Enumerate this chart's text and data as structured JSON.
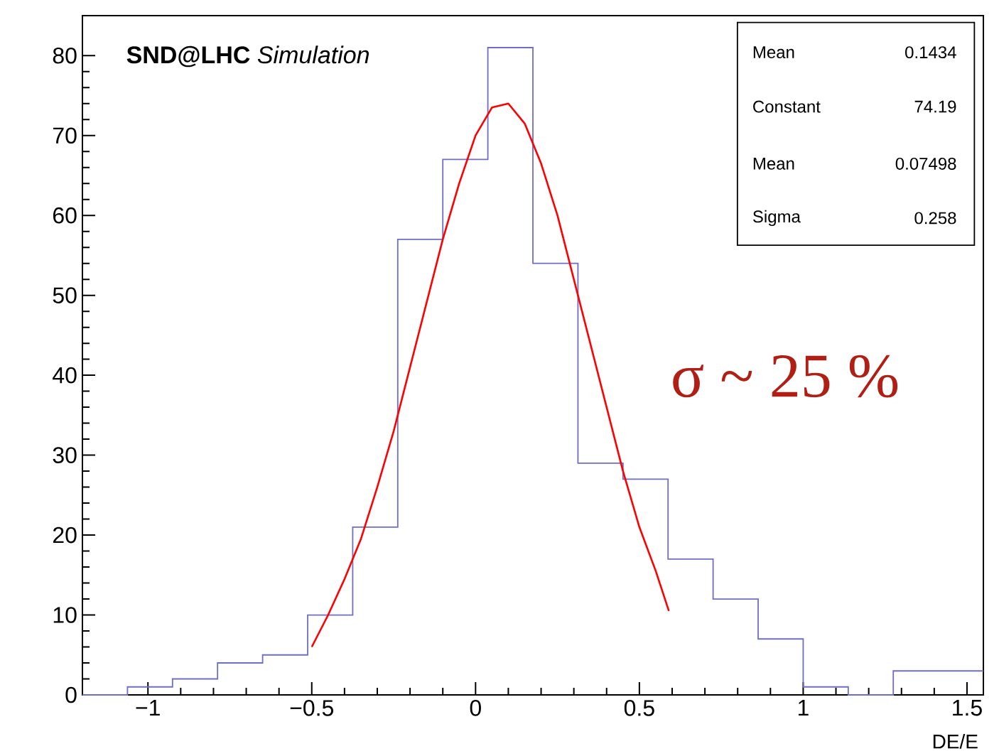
{
  "chart_data": {
    "type": "histogram",
    "title": "**SND@LHC** *Simulation*",
    "xlabel": "DE/E",
    "xlim": [
      -1.2,
      1.55
    ],
    "ylim": [
      0,
      85
    ],
    "xticks": [
      {
        "value": -1,
        "label": "−1"
      },
      {
        "value": -0.5,
        "label": "−0.5"
      },
      0,
      0.5,
      1,
      1.5
    ],
    "yticks": [
      0,
      10,
      20,
      30,
      40,
      50,
      60,
      70,
      80
    ],
    "series": [
      {
        "color": "#6e6ec8",
        "bins": [
          -1.2,
          -1.0625,
          -0.925,
          -0.7875,
          -0.65,
          -0.5125,
          -0.375,
          -0.2375,
          -0.1,
          0.0375,
          0.175,
          0.3125,
          0.45,
          0.5875,
          0.725,
          0.8625,
          1.0,
          1.1375,
          1.275,
          1.4125,
          1.55
        ],
        "values": [
          0,
          1,
          2,
          4,
          5,
          10,
          21,
          57,
          67,
          81,
          54,
          29,
          27,
          17,
          12,
          7,
          1,
          0,
          3,
          3
        ]
      },
      {
        "type": "line",
        "color": "#ff0000",
        "x": [
          -0.5,
          -0.45,
          -0.4,
          -0.35,
          -0.3,
          -0.25,
          -0.2,
          -0.15,
          -0.1,
          -0.05,
          0,
          0.05,
          0.1,
          0.15,
          0.2,
          0.25,
          0.3,
          0.35,
          0.4,
          0.45,
          0.5,
          0.55,
          0.59
        ],
        "values": [
          6,
          10,
          14.5,
          19.5,
          26,
          33,
          41,
          49,
          57,
          64,
          70,
          73.5,
          74,
          71.5,
          66.5,
          60,
          52,
          44,
          36,
          28,
          21,
          15.5,
          10.5
        ]
      }
    ],
    "annotations": [
      "Mean",
      "0.1434",
      "Constant",
      "74.19",
      "Mean",
      "0.07498",
      "Sigma",
      "0.258",
      "σ ~ 25 %"
    ]
  }
}
